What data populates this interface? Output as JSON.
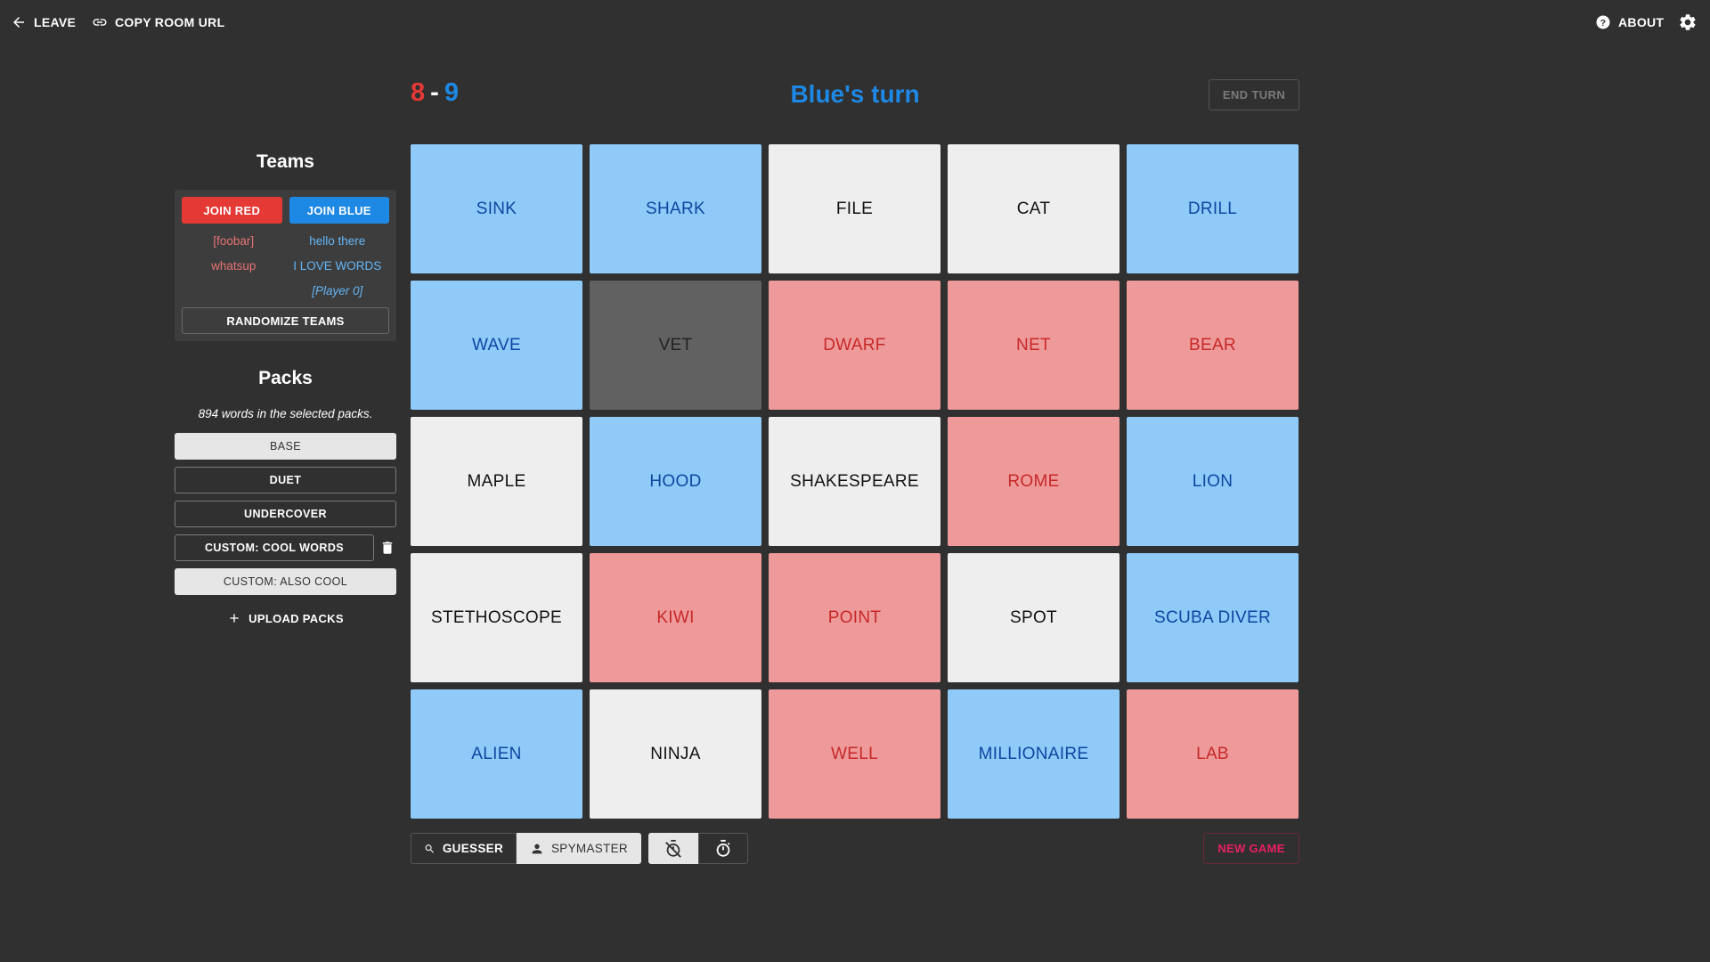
{
  "topbar": {
    "leave_label": "LEAVE",
    "copy_label": "COPY ROOM URL",
    "about_label": "ABOUT"
  },
  "score": {
    "red": "8",
    "separator": "-",
    "blue": "9"
  },
  "turn_label": "Blue's turn",
  "end_turn_label": "END TURN",
  "teams": {
    "title": "Teams",
    "join_red_label": "JOIN RED",
    "join_blue_label": "JOIN BLUE",
    "red_players": [
      "[foobar]",
      "whatsup"
    ],
    "blue_players": [
      "hello there",
      "I LOVE WORDS",
      "[Player 0]"
    ],
    "randomize_label": "RANDOMIZE TEAMS"
  },
  "packs": {
    "title": "Packs",
    "word_count_text": "894 words in the selected packs.",
    "items": [
      {
        "label": "BASE",
        "selected": true
      },
      {
        "label": "DUET",
        "selected": false
      },
      {
        "label": "UNDERCOVER",
        "selected": false
      },
      {
        "label": "CUSTOM: COOL WORDS",
        "selected": false,
        "deletable": true
      },
      {
        "label": "CUSTOM: ALSO COOL",
        "selected": true
      }
    ],
    "upload_label": "UPLOAD PACKS"
  },
  "board": [
    {
      "word": "SINK",
      "team": "blue"
    },
    {
      "word": "SHARK",
      "team": "blue"
    },
    {
      "word": "FILE",
      "team": "neutral"
    },
    {
      "word": "CAT",
      "team": "neutral"
    },
    {
      "word": "DRILL",
      "team": "blue"
    },
    {
      "word": "WAVE",
      "team": "blue"
    },
    {
      "word": "VET",
      "team": "black"
    },
    {
      "word": "DWARF",
      "team": "red"
    },
    {
      "word": "NET",
      "team": "red"
    },
    {
      "word": "BEAR",
      "team": "red"
    },
    {
      "word": "MAPLE",
      "team": "neutral"
    },
    {
      "word": "HOOD",
      "team": "blue"
    },
    {
      "word": "SHAKESPEARE",
      "team": "neutral"
    },
    {
      "word": "ROME",
      "team": "red"
    },
    {
      "word": "LION",
      "team": "blue"
    },
    {
      "word": "STETHOSCOPE",
      "team": "neutral"
    },
    {
      "word": "KIWI",
      "team": "red"
    },
    {
      "word": "POINT",
      "team": "red"
    },
    {
      "word": "SPOT",
      "team": "neutral"
    },
    {
      "word": "SCUBA DIVER",
      "team": "blue"
    },
    {
      "word": "ALIEN",
      "team": "blue"
    },
    {
      "word": "NINJA",
      "team": "neutral"
    },
    {
      "word": "WELL",
      "team": "red"
    },
    {
      "word": "MILLIONAIRE",
      "team": "blue"
    },
    {
      "word": "LAB",
      "team": "red"
    }
  ],
  "roles": {
    "guesser_label": "GUESSER",
    "spymaster_label": "SPYMASTER",
    "selected": "spymaster"
  },
  "timer": {
    "selected": "off"
  },
  "new_game_label": "NEW GAME",
  "colors": {
    "background": "#303030",
    "red": "#e53935",
    "blue": "#1e88e5",
    "card_blue": "#90caf9",
    "card_red": "#ef9a9a",
    "card_neutral": "#eeeeee",
    "card_black": "#616161",
    "new_game": "#e91e63"
  }
}
